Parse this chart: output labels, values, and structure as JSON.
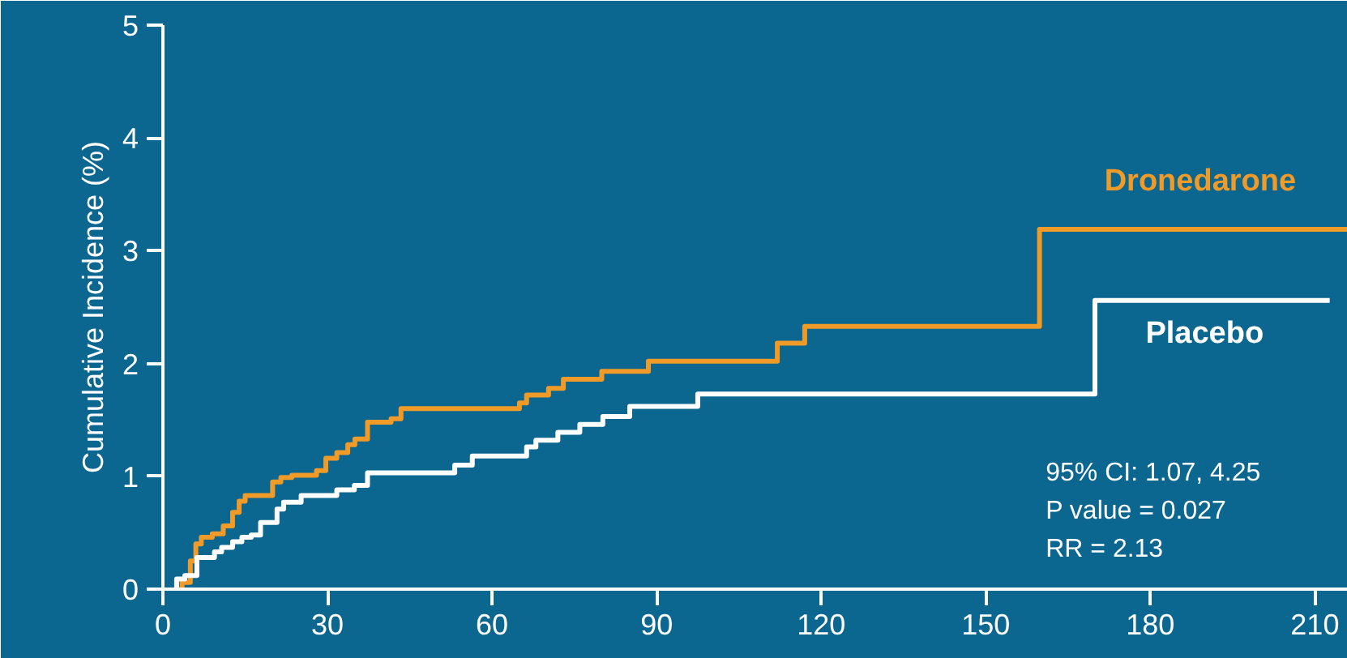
{
  "chart_data": {
    "type": "step",
    "ylabel": "Cumulative Incidence (%)",
    "xlim": [
      0,
      216
    ],
    "xticks": [
      0,
      30,
      60,
      90,
      120,
      150,
      180,
      210
    ],
    "ylim": [
      0,
      5
    ],
    "yticks": [
      0,
      1,
      2,
      3,
      4,
      5
    ],
    "grid": false,
    "marker": "none",
    "line_style": "solid",
    "series": [
      {
        "name": "Dronedarone",
        "color": "#f09a28",
        "x": [
          3,
          3.5,
          5,
          6,
          7,
          9,
          11,
          12.7,
          13.9,
          15,
          20,
          21.5,
          23.5,
          28,
          29.7,
          31.7,
          33.7,
          35,
          37.3,
          41.6,
          43.4,
          65,
          66.3,
          70.3,
          73,
          80,
          88.5,
          112,
          117,
          159.8,
          216
        ],
        "values": [
          0,
          0.06,
          0.25,
          0.4,
          0.46,
          0.49,
          0.56,
          0.68,
          0.78,
          0.83,
          0.95,
          0.99,
          1.01,
          1.05,
          1.16,
          1.21,
          1.28,
          1.33,
          1.48,
          1.51,
          1.6,
          1.65,
          1.72,
          1.78,
          1.86,
          1.93,
          2.02,
          2.18,
          2.33,
          3.19,
          3.19
        ]
      },
      {
        "name": "Placebo",
        "color": "#ffffff",
        "x": [
          2.5,
          2.5,
          4,
          6.2,
          9.4,
          10.7,
          12.7,
          14.4,
          16.1,
          17.8,
          20.8,
          22,
          25.2,
          31.7,
          34.9,
          37.3,
          53.2,
          56.4,
          66.3,
          68,
          72,
          76,
          80.2,
          85.1,
          97.5,
          169.9,
          212.7
        ],
        "values": [
          0,
          0.09,
          0.12,
          0.28,
          0.33,
          0.37,
          0.42,
          0.46,
          0.48,
          0.59,
          0.71,
          0.77,
          0.83,
          0.88,
          0.92,
          1.03,
          1.1,
          1.18,
          1.26,
          1.32,
          1.39,
          1.46,
          1.53,
          1.62,
          1.73,
          2.56,
          2.56
        ]
      }
    ],
    "annotations": [
      "95% CI: 1.07, 4.25",
      "P value = 0.027",
      "RR = 2.13"
    ]
  }
}
